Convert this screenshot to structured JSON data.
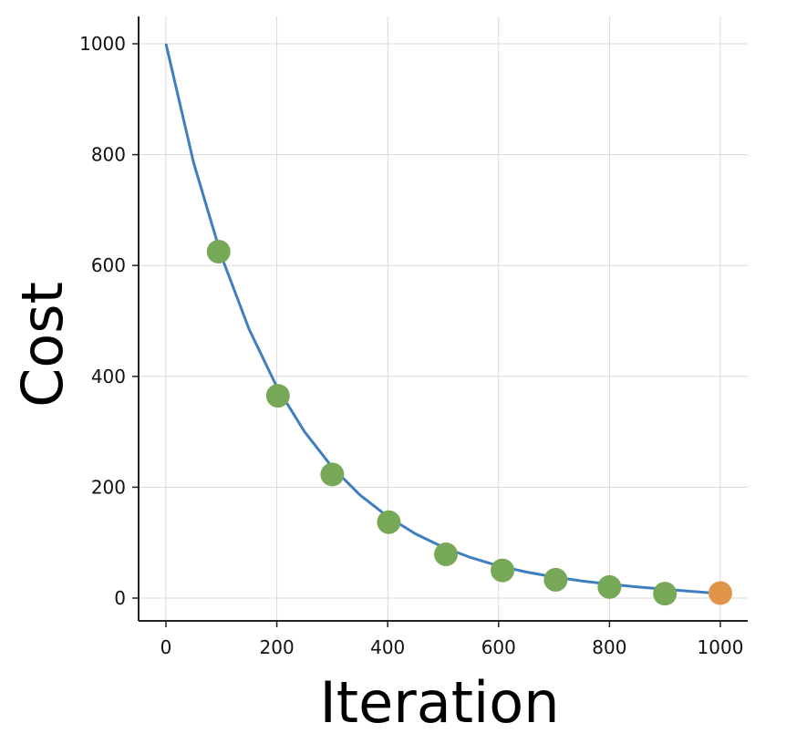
{
  "chart_data": {
    "type": "line",
    "xlabel": "Iteration",
    "ylabel": "Cost",
    "xlim": [
      -50,
      1050
    ],
    "ylim": [
      -40,
      1050
    ],
    "x_ticks": [
      "0",
      "200",
      "400",
      "600",
      "800",
      "1000"
    ],
    "y_ticks": [
      "1000",
      "800",
      "600",
      "400",
      "200",
      "0"
    ],
    "x_tick_values": [
      0,
      200,
      400,
      600,
      800,
      1000
    ],
    "y_tick_values": [
      1000,
      800,
      600,
      400,
      200,
      0
    ],
    "grid": true,
    "series": [
      {
        "kind": "curve",
        "color": "#3f7fbf",
        "x": [
          0,
          50,
          100,
          150,
          200,
          250,
          300,
          350,
          400,
          450,
          500,
          550,
          600,
          650,
          700,
          750,
          800,
          850,
          900,
          950,
          1000
        ],
        "y": [
          1000,
          785,
          617,
          485,
          381,
          300,
          236,
          186,
          147,
          116,
          92,
          73,
          58,
          47,
          38,
          31,
          25,
          20,
          16,
          12,
          8
        ]
      },
      {
        "kind": "points",
        "color": "#77a857",
        "x": [
          95,
          202,
          300,
          402,
          505,
          607,
          703,
          800,
          900
        ],
        "y": [
          625,
          365,
          223,
          137,
          79,
          50,
          33,
          20,
          8
        ]
      },
      {
        "kind": "points",
        "color": "#e0944a",
        "x": [
          1000
        ],
        "y": [
          9
        ]
      }
    ]
  }
}
